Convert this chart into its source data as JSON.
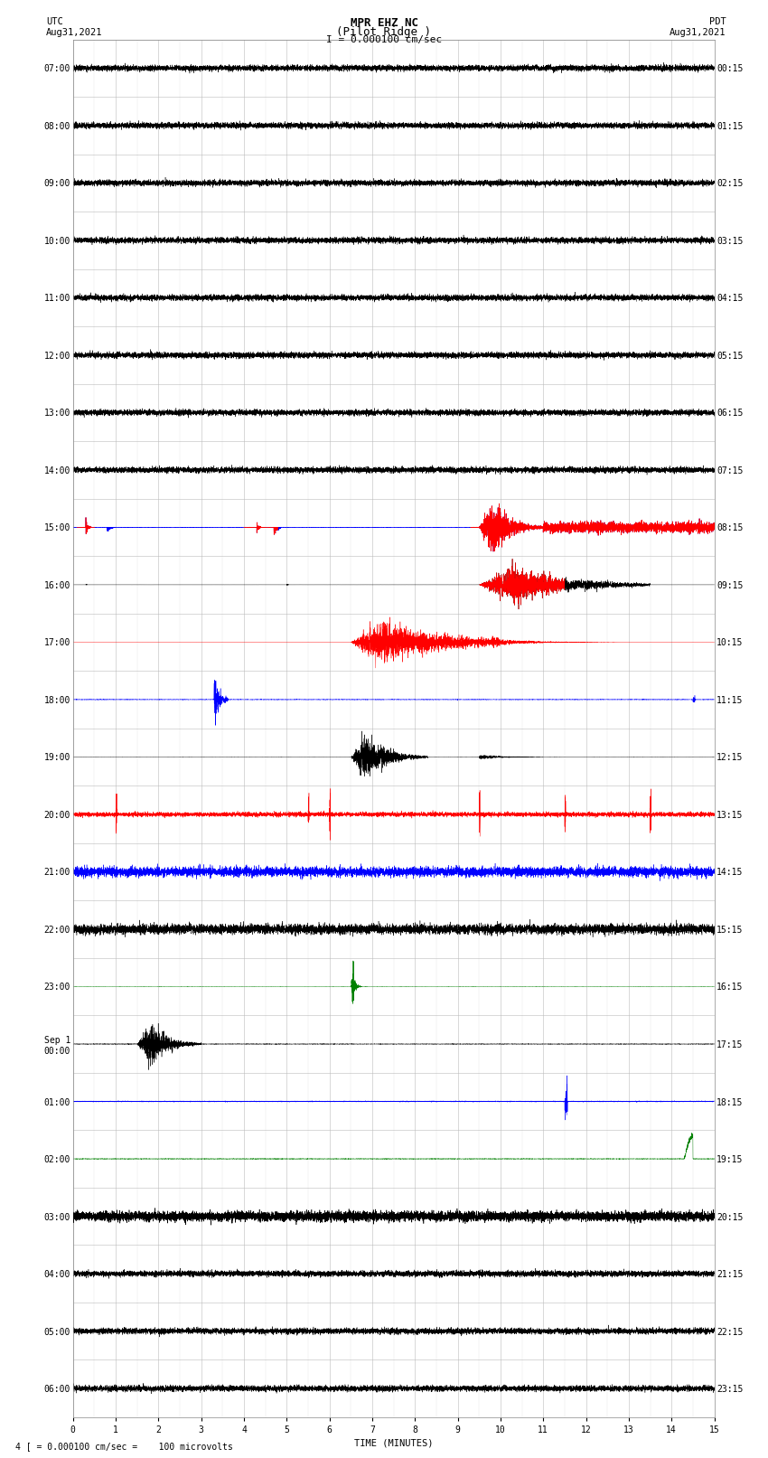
{
  "title_line1": "MPR EHZ NC",
  "title_line2": "(Pilot Ridge )",
  "title_line3": "I = 0.000100 cm/sec",
  "left_header": "UTC\nAug31,2021",
  "right_header": "PDT\nAug31,2021",
  "xlabel": "TIME (MINUTES)",
  "footer": "4 [ = 0.000100 cm/sec =    100 microvolts",
  "background_color": "#ffffff",
  "left_times_utc": [
    "07:00",
    "08:00",
    "09:00",
    "10:00",
    "11:00",
    "12:00",
    "13:00",
    "14:00",
    "15:00",
    "16:00",
    "17:00",
    "18:00",
    "19:00",
    "20:00",
    "21:00",
    "22:00",
    "23:00",
    "Sep 1\n00:00",
    "01:00",
    "02:00",
    "03:00",
    "04:00",
    "05:00",
    "06:00"
  ],
  "right_times_pdt": [
    "00:15",
    "01:15",
    "02:15",
    "03:15",
    "04:15",
    "05:15",
    "06:15",
    "07:15",
    "08:15",
    "09:15",
    "10:15",
    "11:15",
    "12:15",
    "13:15",
    "14:15",
    "15:15",
    "16:15",
    "17:15",
    "18:15",
    "19:15",
    "20:15",
    "21:15",
    "22:15",
    "23:15"
  ],
  "n_rows": 24,
  "n_minutes": 15,
  "figsize": [
    8.5,
    16.13
  ],
  "dpi": 100,
  "title_fontsize": 9,
  "label_fontsize": 7.5,
  "tick_fontsize": 7,
  "grid_major_color": "#bbbbbb",
  "grid_minor_color": "#dddddd"
}
